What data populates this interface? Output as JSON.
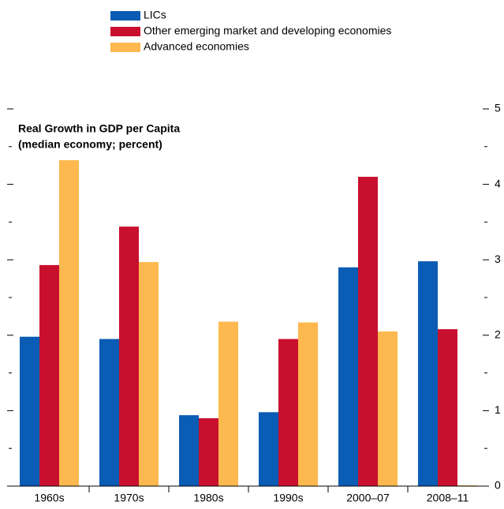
{
  "chart_data": {
    "type": "bar",
    "title": "Real Growth in GDP per Capita",
    "subtitle": "(median economy; percent)",
    "categories": [
      "1960s",
      "1970s",
      "1980s",
      "1990s",
      "2000–07",
      "2008–11"
    ],
    "series": [
      {
        "name": "LICs",
        "color": "#0a5cb4",
        "values": [
          1.98,
          1.95,
          0.94,
          0.98,
          2.9,
          2.98
        ]
      },
      {
        "name": "Other emerging market and developing economies",
        "color": "#c8102e",
        "values": [
          2.93,
          3.44,
          0.9,
          1.95,
          4.1,
          2.08
        ]
      },
      {
        "name": "Advanced economies",
        "color": "#fdb94f",
        "values": [
          4.32,
          2.97,
          2.18,
          2.17,
          2.05,
          0.01
        ]
      }
    ],
    "ylim": [
      0,
      5
    ],
    "yticks": [
      0,
      1,
      2,
      3,
      4,
      5
    ],
    "yminor_ticks": [
      0.5,
      1.5,
      2.5,
      3.5,
      4.5
    ]
  }
}
